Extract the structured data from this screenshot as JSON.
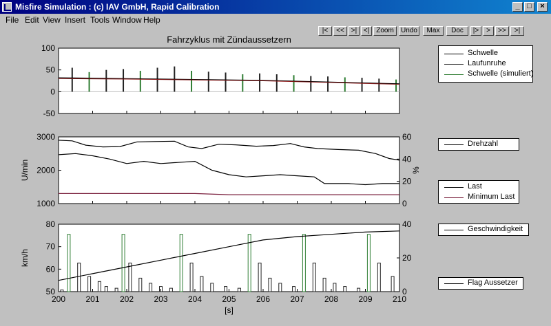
{
  "window": {
    "title": "Misfire Simulation : (c) IAV GmbH, Rapid Calibration",
    "controls": [
      "_",
      "□",
      "×"
    ]
  },
  "menu": [
    "File",
    "Edit",
    "View",
    "Insert",
    "Tools",
    "Window",
    "Help"
  ],
  "toolbar": [
    "|<",
    "<<",
    ">|",
    "<|",
    "Zoom",
    "Undo",
    "Max",
    "Doc",
    "|>",
    ">",
    ">>",
    ">|"
  ],
  "chart_data": [
    {
      "type": "line",
      "title": "Fahrzyklus mit Zündaussetzern",
      "ylim": [
        -50,
        100
      ],
      "yticks": [
        -50,
        0,
        50,
        100
      ],
      "xlim": [
        200,
        210
      ],
      "legend": [
        "Schwelle",
        "Laufunruhe",
        "Schwelle (simuliert)"
      ],
      "series": [
        {
          "name": "Schwelle",
          "x": [
            200,
            202,
            204,
            206,
            208,
            210
          ],
          "values": [
            32,
            30,
            28,
            26,
            22,
            18
          ]
        },
        {
          "name": "Schwelle (simuliert)",
          "x": [
            200,
            202,
            204,
            206,
            208,
            210
          ],
          "values": [
            30,
            29,
            27,
            25,
            21,
            17
          ]
        },
        {
          "name": "Laufunruhe",
          "x": [
            200.4,
            200.9,
            201.4,
            201.9,
            202.4,
            202.9,
            203.4,
            203.9,
            204.4,
            204.9,
            205.4,
            205.9,
            206.4,
            206.9,
            207.4,
            207.9,
            208.4,
            208.9,
            209.4,
            209.9
          ],
          "values": [
            55,
            45,
            50,
            52,
            48,
            55,
            58,
            48,
            46,
            44,
            40,
            42,
            40,
            38,
            36,
            35,
            33,
            32,
            30,
            28
          ]
        }
      ]
    },
    {
      "type": "line",
      "ylabel": "U/min",
      "y2label": "%",
      "ylim": [
        1000,
        3000
      ],
      "yticks": [
        1000,
        2000,
        3000
      ],
      "y2lim": [
        0,
        60
      ],
      "y2ticks": [
        0,
        20,
        40,
        60
      ],
      "xlim": [
        200,
        210
      ],
      "legend_top": [
        "Drehzahl"
      ],
      "legend_bottom": [
        "Last",
        "Minimum Last"
      ],
      "series": [
        {
          "name": "Drehzahl",
          "x": [
            200,
            200.4,
            200.8,
            201.3,
            201.8,
            202.3,
            202.8,
            203.4,
            203.8,
            204.2,
            204.7,
            205.2,
            205.8,
            206.3,
            206.8,
            207.2,
            207.6,
            208.2,
            208.8,
            209.3,
            209.7,
            210
          ],
          "values": [
            2900,
            2880,
            2750,
            2700,
            2710,
            2850,
            2860,
            2870,
            2700,
            2650,
            2780,
            2760,
            2720,
            2740,
            2800,
            2700,
            2650,
            2620,
            2600,
            2500,
            2350,
            2300
          ]
        },
        {
          "name": "Last",
          "x": [
            200,
            200.5,
            201.0,
            201.5,
            202.0,
            202.5,
            203.0,
            203.5,
            204.0,
            204.5,
            205.0,
            205.5,
            206.0,
            206.5,
            207.0,
            207.5,
            207.8,
            208.5,
            209.0,
            209.5,
            210
          ],
          "values": [
            44,
            45,
            43,
            40,
            36,
            38,
            36,
            37,
            38,
            30,
            26,
            24,
            25,
            26,
            25,
            24,
            18,
            18,
            17,
            18,
            18
          ]
        },
        {
          "name": "Minimum Last",
          "x": [
            200,
            204,
            205,
            210
          ],
          "values": [
            9,
            9,
            8,
            8
          ]
        }
      ]
    },
    {
      "type": "bar",
      "ylabel": "km/h",
      "xlabel": "[s]",
      "ylim": [
        50,
        80
      ],
      "yticks": [
        50,
        60,
        70,
        80
      ],
      "y2lim": [
        0,
        40
      ],
      "y2ticks": [
        0,
        20,
        40
      ],
      "xlim": [
        200,
        210
      ],
      "xticks": [
        200,
        201,
        202,
        203,
        204,
        205,
        206,
        207,
        208,
        209,
        210
      ],
      "legend_top": [
        "Geschwindigkeit"
      ],
      "legend_bottom": [
        "Flag Aussetzer"
      ],
      "speed": {
        "name": "Geschwindigkeit",
        "x": [
          200,
          201,
          202,
          203,
          204,
          205,
          206,
          207,
          208,
          209,
          210
        ],
        "values": [
          55,
          58,
          61,
          64,
          67,
          70,
          73,
          74.5,
          75.5,
          76.5,
          77
        ]
      },
      "flags": {
        "name": "Flag Aussetzer",
        "x": [
          200.1,
          200.3,
          200.6,
          200.9,
          201.2,
          201.4,
          201.7,
          201.9,
          202.1,
          202.4,
          202.7,
          203.0,
          203.3,
          203.6,
          203.9,
          204.2,
          204.5,
          204.9,
          205.3,
          205.6,
          205.9,
          206.2,
          206.5,
          206.9,
          207.2,
          207.5,
          207.8,
          208.1,
          208.4,
          208.8,
          209.1,
          209.4,
          209.8
        ],
        "values": [
          1,
          34,
          17,
          9,
          6,
          3,
          2,
          34,
          17,
          8,
          5,
          3,
          2,
          34,
          17,
          9,
          5,
          3,
          2,
          34,
          17,
          8,
          5,
          3,
          34,
          17,
          8,
          5,
          3,
          2,
          34,
          17,
          9
        ]
      }
    }
  ]
}
